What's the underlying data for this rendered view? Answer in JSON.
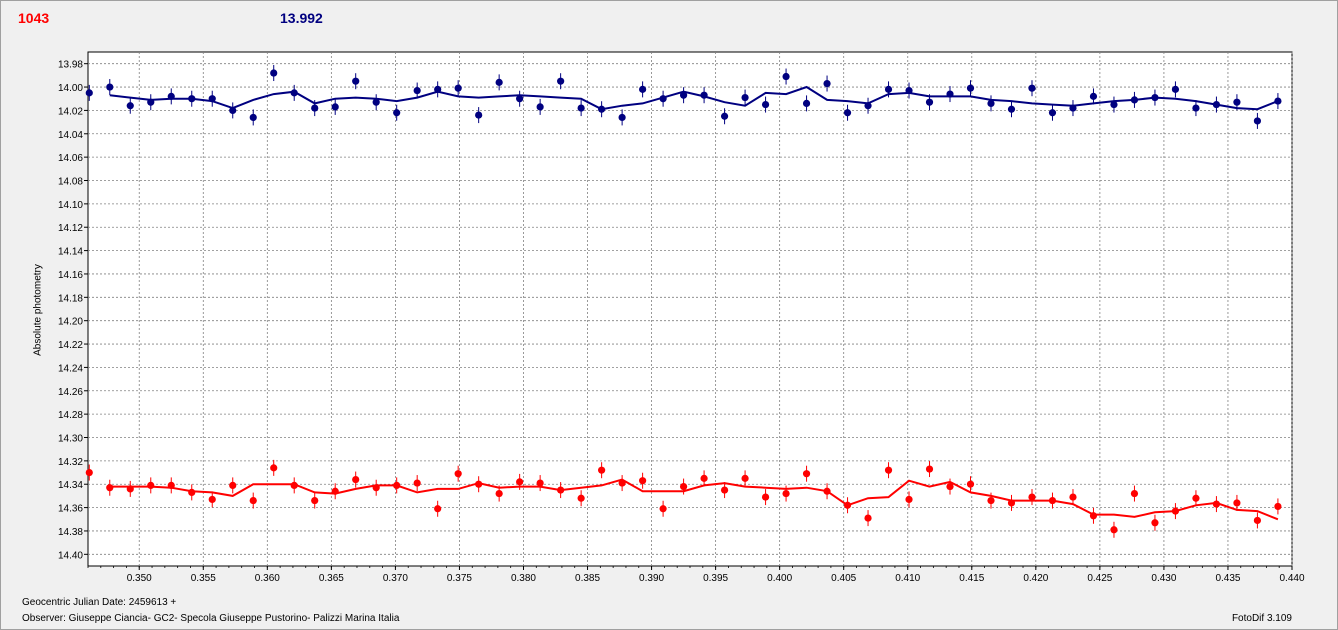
{
  "header": {
    "left_value": "1043",
    "right_value": "13.992",
    "left_color": "#ff0000",
    "right_color": "#000080"
  },
  "footer": {
    "date_label": "Geocentric Julian Date: 2459613 +",
    "observer": "Observer: Giuseppe Ciancia- GC2- Specola Giuseppe Pustorino- Palizzi Marina Italia",
    "version": "FotoDif 3.109"
  },
  "chart_data": {
    "type": "scatter",
    "title": "",
    "xlabel": "",
    "ylabel": "Absolute photometry",
    "xlim": [
      0.346,
      0.44
    ],
    "ylim": [
      13.97,
      14.41
    ],
    "y_inverted": true,
    "grid": true,
    "x_ticks": [
      "0.350",
      "0.355",
      "0.360",
      "0.365",
      "0.370",
      "0.375",
      "0.380",
      "0.385",
      "0.390",
      "0.395",
      "0.400",
      "0.405",
      "0.410",
      "0.415",
      "0.420",
      "0.425",
      "0.430",
      "0.435",
      "0.440"
    ],
    "y_ticks": [
      "13.98",
      "14.00",
      "14.02",
      "14.04",
      "14.06",
      "14.08",
      "14.10",
      "14.12",
      "14.14",
      "14.16",
      "14.18",
      "14.20",
      "14.22",
      "14.24",
      "14.26",
      "14.28",
      "14.30",
      "14.32",
      "14.34",
      "14.36",
      "14.38",
      "14.40"
    ],
    "series": [
      {
        "color": "#000080",
        "x": [
          0.3461,
          0.3477,
          0.3493,
          0.3509,
          0.3525,
          0.3541,
          0.3557,
          0.3573,
          0.3589,
          0.3605,
          0.3621,
          0.3637,
          0.3653,
          0.3669,
          0.3685,
          0.3701,
          0.3717,
          0.3733,
          0.3749,
          0.3765,
          0.3781,
          0.3797,
          0.3813,
          0.3829,
          0.3845,
          0.3861,
          0.3877,
          0.3893,
          0.3909,
          0.3925,
          0.3941,
          0.3957,
          0.3973,
          0.3989,
          0.4005,
          0.4021,
          0.4037,
          0.4053,
          0.4069,
          0.4085,
          0.4101,
          0.4117,
          0.4133,
          0.4149,
          0.4165,
          0.4181,
          0.4197,
          0.4213,
          0.4229,
          0.4245,
          0.4261,
          0.4277,
          0.4293,
          0.4309,
          0.4325,
          0.4341,
          0.4357,
          0.4373,
          0.4389,
          0.4405
        ],
        "y": [
          14.005,
          14.0,
          14.016,
          14.013,
          14.008,
          14.01,
          14.01,
          14.02,
          14.026,
          13.988,
          14.005,
          14.018,
          14.017,
          13.995,
          14.013,
          14.022,
          14.003,
          14.002,
          14.001,
          14.024,
          13.996,
          14.01,
          14.017,
          13.995,
          14.018,
          14.019,
          14.026,
          14.002,
          14.01,
          14.007,
          14.007,
          14.025,
          14.009,
          14.015,
          13.991,
          14.014,
          13.997,
          14.022,
          14.016,
          14.002,
          14.003,
          14.013,
          14.006,
          14.001,
          14.014,
          14.019,
          14.001,
          14.022,
          14.018,
          14.008,
          14.015,
          14.011,
          14.009,
          14.002,
          14.018,
          14.015,
          14.013,
          14.029,
          14.012,
          13.994
        ],
        "fit_x": [
          0.3477,
          0.3493,
          0.3509,
          0.3525,
          0.3541,
          0.3557,
          0.3573,
          0.3589,
          0.3605,
          0.3621,
          0.3637,
          0.3653,
          0.3669,
          0.3685,
          0.3701,
          0.3717,
          0.3733,
          0.3749,
          0.3765,
          0.3781,
          0.3797,
          0.3813,
          0.3829,
          0.3845,
          0.3861,
          0.3877,
          0.3893,
          0.3909,
          0.3925,
          0.3941,
          0.3957,
          0.3973,
          0.3989,
          0.4005,
          0.4021,
          0.4037,
          0.4053,
          0.4069,
          0.4085,
          0.4101,
          0.4117,
          0.4133,
          0.4149,
          0.4165,
          0.4181,
          0.4197,
          0.4213,
          0.4229,
          0.4245,
          0.4261,
          0.4277,
          0.4293,
          0.4309,
          0.4325,
          0.4341,
          0.4357,
          0.4373,
          0.4389
        ],
        "fit_y": [
          14.007,
          14.009,
          14.011,
          14.01,
          14.01,
          14.012,
          14.018,
          14.011,
          14.006,
          14.004,
          14.014,
          14.01,
          14.009,
          14.01,
          14.012,
          14.009,
          14.004,
          14.008,
          14.009,
          14.008,
          14.007,
          14.008,
          14.009,
          14.01,
          14.019,
          14.016,
          14.014,
          14.009,
          14.004,
          14.008,
          14.013,
          14.016,
          14.005,
          14.006,
          14.0,
          14.011,
          14.012,
          14.014,
          14.006,
          14.005,
          14.008,
          14.008,
          14.008,
          14.011,
          14.012,
          14.014,
          14.015,
          14.016,
          14.014,
          14.012,
          14.011,
          14.009,
          14.01,
          14.012,
          14.015,
          14.018,
          14.019,
          14.012
        ]
      },
      {
        "color": "#ff0000",
        "x": [
          0.3461,
          0.3477,
          0.3493,
          0.3509,
          0.3525,
          0.3541,
          0.3557,
          0.3573,
          0.3589,
          0.3605,
          0.3621,
          0.3637,
          0.3653,
          0.3669,
          0.3685,
          0.3701,
          0.3717,
          0.3733,
          0.3749,
          0.3765,
          0.3781,
          0.3797,
          0.3813,
          0.3829,
          0.3845,
          0.3861,
          0.3877,
          0.3893,
          0.3909,
          0.3925,
          0.3941,
          0.3957,
          0.3973,
          0.3989,
          0.4005,
          0.4021,
          0.4037,
          0.4053,
          0.4069,
          0.4085,
          0.4101,
          0.4117,
          0.4133,
          0.4149,
          0.4165,
          0.4181,
          0.4197,
          0.4213,
          0.4229,
          0.4245,
          0.4261,
          0.4277,
          0.4293,
          0.4309,
          0.4325,
          0.4341,
          0.4357,
          0.4373,
          0.4389,
          0.4405
        ],
        "y": [
          14.33,
          14.343,
          14.344,
          14.341,
          14.341,
          14.347,
          14.353,
          14.341,
          14.354,
          14.326,
          14.341,
          14.354,
          14.346,
          14.336,
          14.343,
          14.341,
          14.339,
          14.361,
          14.331,
          14.34,
          14.348,
          14.338,
          14.339,
          14.345,
          14.352,
          14.328,
          14.339,
          14.337,
          14.361,
          14.342,
          14.335,
          14.345,
          14.335,
          14.351,
          14.348,
          14.331,
          14.346,
          14.358,
          14.369,
          14.328,
          14.353,
          14.327,
          14.342,
          14.34,
          14.354,
          14.356,
          14.351,
          14.354,
          14.351,
          14.367,
          14.379,
          14.348,
          14.373,
          14.363,
          14.352,
          14.357,
          14.356,
          14.371,
          14.359,
          14.377
        ],
        "fit_x": [
          0.3477,
          0.3493,
          0.3509,
          0.3525,
          0.3541,
          0.3557,
          0.3573,
          0.3589,
          0.3605,
          0.3621,
          0.3637,
          0.3653,
          0.3669,
          0.3685,
          0.3701,
          0.3717,
          0.3733,
          0.3749,
          0.3765,
          0.3781,
          0.3797,
          0.3813,
          0.3829,
          0.3845,
          0.3861,
          0.3877,
          0.3893,
          0.3909,
          0.3925,
          0.3941,
          0.3957,
          0.3973,
          0.3989,
          0.4005,
          0.4021,
          0.4037,
          0.4053,
          0.4069,
          0.4085,
          0.4101,
          0.4117,
          0.4133,
          0.4149,
          0.4165,
          0.4181,
          0.4197,
          0.4213,
          0.4229,
          0.4245,
          0.4261,
          0.4277,
          0.4293,
          0.4309,
          0.4325,
          0.4341,
          0.4357,
          0.4373,
          0.4389
        ],
        "fit_y": [
          14.342,
          14.342,
          14.342,
          14.343,
          14.346,
          14.347,
          14.35,
          14.34,
          14.34,
          14.34,
          14.347,
          14.348,
          14.344,
          14.341,
          14.341,
          14.347,
          14.344,
          14.344,
          14.339,
          14.343,
          14.342,
          14.342,
          14.345,
          14.343,
          14.341,
          14.336,
          14.346,
          14.346,
          14.346,
          14.341,
          14.339,
          14.342,
          14.343,
          14.344,
          14.343,
          14.346,
          14.358,
          14.352,
          14.351,
          14.337,
          14.342,
          14.338,
          14.347,
          14.35,
          14.354,
          14.354,
          14.354,
          14.357,
          14.366,
          14.366,
          14.368,
          14.364,
          14.363,
          14.358,
          14.356,
          14.362,
          14.363,
          14.37
        ]
      }
    ]
  }
}
